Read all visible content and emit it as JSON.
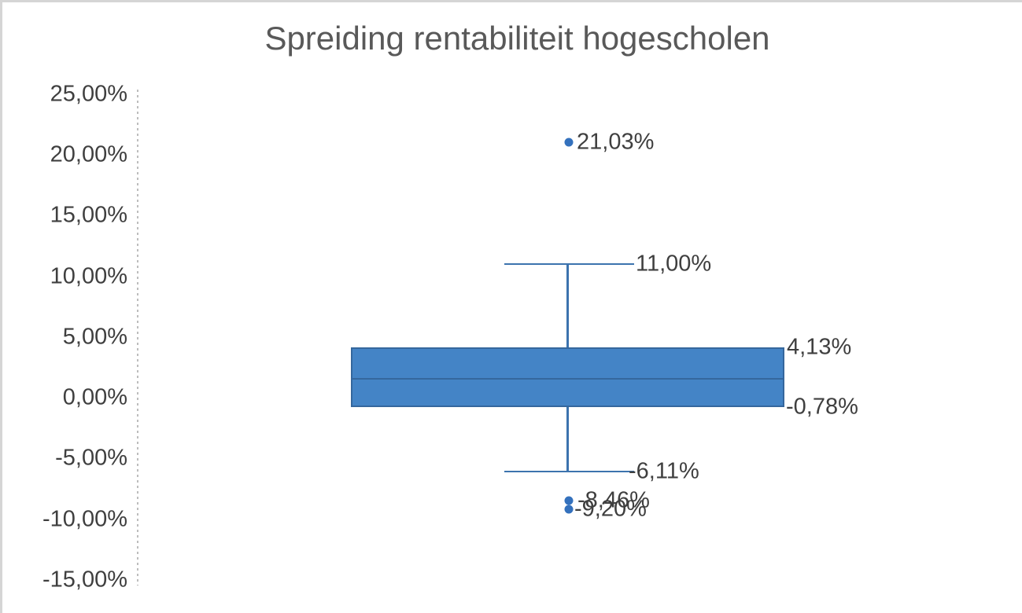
{
  "chart_data": {
    "type": "boxplot",
    "title": "Spreiding rentabiliteit hogescholen",
    "legend": "none",
    "grid": "off",
    "y_axis": {
      "range": [
        -15,
        25
      ],
      "tick_step": 5,
      "number_format": "0,00%",
      "ticks": [
        {
          "label": "25,00%",
          "value": 25
        },
        {
          "label": "20,00%",
          "value": 20
        },
        {
          "label": "15,00%",
          "value": 15
        },
        {
          "label": "10,00%",
          "value": 10
        },
        {
          "label": "5,00%",
          "value": 5
        },
        {
          "label": "0,00%",
          "value": 0
        },
        {
          "label": "-5,00%",
          "value": -5
        },
        {
          "label": "-10,00%",
          "value": -10
        },
        {
          "label": "-15,00%",
          "value": -15
        }
      ]
    },
    "series": [
      {
        "upper_outliers": [
          {
            "value": 21.03,
            "label": "21,03%"
          }
        ],
        "whisker_high": {
          "value": 11.0,
          "label": "11,00%"
        },
        "q3": {
          "value": 4.13,
          "label": "4,13%"
        },
        "median": {
          "value": 1.6,
          "label": ""
        },
        "q1": {
          "value": -0.78,
          "label": "-0,78%"
        },
        "whisker_low": {
          "value": -6.11,
          "label": "-6,11%"
        },
        "lower_outliers": [
          {
            "value": -8.46,
            "label": "-8,46%"
          },
          {
            "value": -9.2,
            "label": "-9,20%"
          }
        ]
      }
    ],
    "colors": {
      "box_fill": "#4484c6",
      "box_border": "#35679d",
      "whisker": "#3c73ae",
      "outlier_dot": "#3471bd",
      "title_text": "#595959",
      "axis_text": "#3f3f3f",
      "axis_line": "#bdbdbd",
      "image_border": "#d5d5d5"
    }
  }
}
